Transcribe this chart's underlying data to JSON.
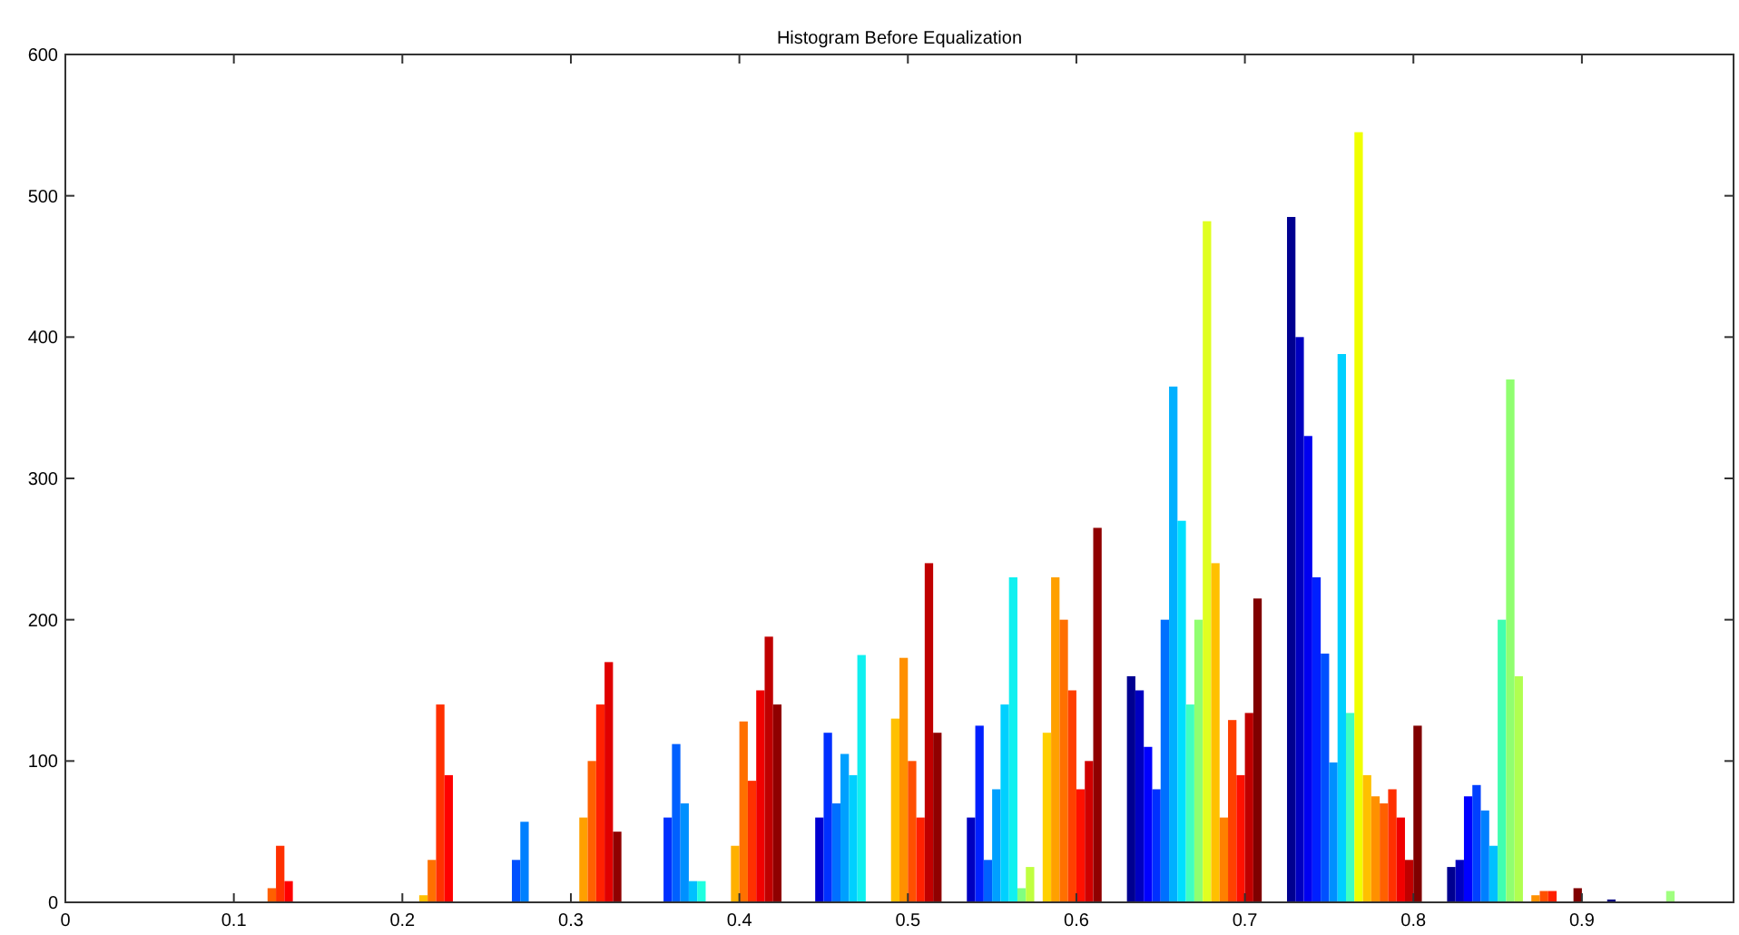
{
  "chart_data": {
    "type": "histogram",
    "title": "Histogram Before Equalization",
    "bins": [
      0.12,
      0.125,
      0.13,
      0.135,
      0.21,
      0.215,
      0.22,
      0.225,
      0.23,
      0.265,
      0.27,
      0.275,
      0.305,
      0.31,
      0.315,
      0.32,
      0.325,
      0.33,
      0.355,
      0.36,
      0.365,
      0.37,
      0.375,
      0.38,
      0.395,
      0.4,
      0.405,
      0.41,
      0.415,
      0.42,
      0.425,
      0.445,
      0.45,
      0.455,
      0.46,
      0.465,
      0.47,
      0.475,
      0.49,
      0.495,
      0.5,
      0.505,
      0.51,
      0.515,
      0.52,
      0.535,
      0.54,
      0.545,
      0.55,
      0.555,
      0.56,
      0.565,
      0.57,
      0.575,
      0.58,
      0.585,
      0.59,
      0.595,
      0.6,
      0.605,
      0.61,
      0.615,
      0.63,
      0.635,
      0.64,
      0.645,
      0.65,
      0.655,
      0.66,
      0.665,
      0.67,
      0.675,
      0.68,
      0.685,
      0.69,
      0.695,
      0.7,
      0.705,
      0.71,
      0.725,
      0.73,
      0.735,
      0.74,
      0.745,
      0.75,
      0.755,
      0.76,
      0.765,
      0.77,
      0.775,
      0.78,
      0.785,
      0.79,
      0.795,
      0.8,
      0.805,
      0.82,
      0.825,
      0.83,
      0.835,
      0.84,
      0.845,
      0.85,
      0.855,
      0.86,
      0.865,
      0.87,
      0.875,
      0.88,
      0.885,
      0.895,
      0.9,
      0.915,
      0.92,
      0.95,
      0.955
    ],
    "values": [
      10,
      40,
      15,
      0,
      5,
      30,
      140,
      90,
      0,
      30,
      57,
      0,
      60,
      100,
      140,
      170,
      50,
      0,
      60,
      112,
      70,
      15,
      15,
      0,
      40,
      128,
      86,
      150,
      188,
      140,
      0,
      60,
      120,
      70,
      105,
      90,
      175,
      0,
      130,
      173,
      100,
      60,
      240,
      120,
      0,
      60,
      125,
      30,
      80,
      140,
      230,
      10,
      25,
      0,
      120,
      230,
      200,
      150,
      80,
      100,
      265,
      0,
      160,
      150,
      110,
      80,
      200,
      365,
      270,
      140,
      200,
      482,
      240,
      60,
      129,
      90,
      134,
      215,
      0,
      485,
      400,
      330,
      230,
      176,
      99,
      388,
      134,
      545,
      90,
      75,
      70,
      80,
      60,
      30,
      125,
      0,
      25,
      30,
      75,
      83,
      65,
      40,
      200,
      370,
      160,
      0,
      5,
      8,
      8,
      0,
      10,
      0,
      2,
      0,
      8
    ],
    "colors": [
      "#ff6000",
      "#ff3000",
      "#ff0000",
      null,
      "#ffbf00",
      "#ff7000",
      "#ff3000",
      "#ff0000",
      null,
      "#0050ff",
      "#0080ff",
      null,
      "#ffa000",
      "#ff6000",
      "#ff2000",
      "#e00000",
      "#900000",
      null,
      "#0030ff",
      "#0060ff",
      "#0090ff",
      "#00c0ff",
      "#20ffe0",
      null,
      "#ffb000",
      "#ff7000",
      "#ff3000",
      "#f00000",
      "#c00000",
      "#900000",
      null,
      "#0000d0",
      "#0030ff",
      "#0070ff",
      "#00a0ff",
      "#00d0ff",
      "#10f0f0",
      null,
      "#ffc000",
      "#ff9000",
      "#ff5000",
      "#ff2000",
      "#c00000",
      "#900000",
      null,
      "#0000c0",
      "#0020ff",
      "#0060ff",
      "#00a0ff",
      "#00d0ff",
      "#10f0f0",
      "#80ff80",
      "#c0ff40",
      null,
      "#ffd000",
      "#ffa000",
      "#ff7000",
      "#ff4000",
      "#ff1000",
      "#d00000",
      "#900000",
      null,
      "#000090",
      "#0000c0",
      "#0000ff",
      "#0030ff",
      "#0070ff",
      "#00b0ff",
      "#00e0ff",
      "#40ffc0",
      "#90ff70",
      "#e0ff20",
      "#ffc000",
      "#ff8000",
      "#ff4000",
      "#ff1000",
      "#c00000",
      "#800000",
      null,
      "#000090",
      "#0000c0",
      "#0000f0",
      "#0020ff",
      "#0050ff",
      "#0090ff",
      "#00d0ff",
      "#40ffc0",
      "#f0ff00",
      "#ffc000",
      "#ff9000",
      "#ff6000",
      "#ff3000",
      "#f00000",
      "#c00000",
      "#800000",
      null,
      "#000090",
      "#0000c0",
      "#0000ff",
      "#0040ff",
      "#0080ff",
      "#00c0ff",
      "#40ffb0",
      "#90ff70",
      "#b0ff50",
      null,
      "#ff9000",
      "#ff5000",
      "#ff2000",
      null,
      "#800000",
      null,
      "#000080",
      null,
      "#a0ff80"
    ],
    "xlim": [
      0,
      0.99
    ],
    "xticks": [
      0,
      0.1,
      0.2,
      0.3,
      0.4,
      0.5,
      0.6,
      0.7,
      0.8,
      0.9
    ],
    "ylim": [
      0,
      600
    ],
    "yticks": [
      0,
      100,
      200,
      300,
      400,
      500,
      600
    ]
  }
}
